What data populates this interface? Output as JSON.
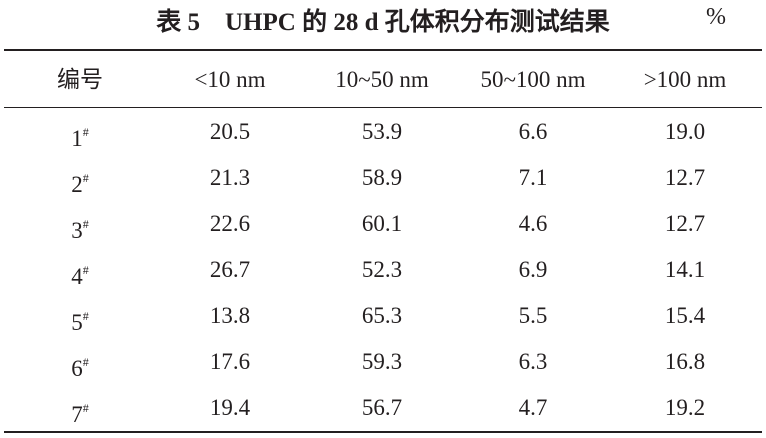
{
  "header": {
    "title": "表 5　UHPC 的 28 d 孔体积分布测试结果",
    "unit": "%"
  },
  "table": {
    "columns": [
      "编号",
      "<10 nm",
      "10~50 nm",
      "50~100 nm",
      ">100 nm"
    ],
    "rows": [
      {
        "label": "1",
        "mark": "#",
        "cells": [
          "20.5",
          "53.9",
          "6.6",
          "19.0"
        ]
      },
      {
        "label": "2",
        "mark": "#",
        "cells": [
          "21.3",
          "58.9",
          "7.1",
          "12.7"
        ]
      },
      {
        "label": "3",
        "mark": "#",
        "cells": [
          "22.6",
          "60.1",
          "4.6",
          "12.7"
        ]
      },
      {
        "label": "4",
        "mark": "#",
        "cells": [
          "26.7",
          "52.3",
          "6.9",
          "14.1"
        ]
      },
      {
        "label": "5",
        "mark": "#",
        "cells": [
          "13.8",
          "65.3",
          "5.5",
          "15.4"
        ]
      },
      {
        "label": "6",
        "mark": "#",
        "cells": [
          "17.6",
          "59.3",
          "6.3",
          "16.8"
        ]
      },
      {
        "label": "7",
        "mark": "#",
        "cells": [
          "19.4",
          "56.7",
          "4.7",
          "19.2"
        ]
      }
    ]
  }
}
